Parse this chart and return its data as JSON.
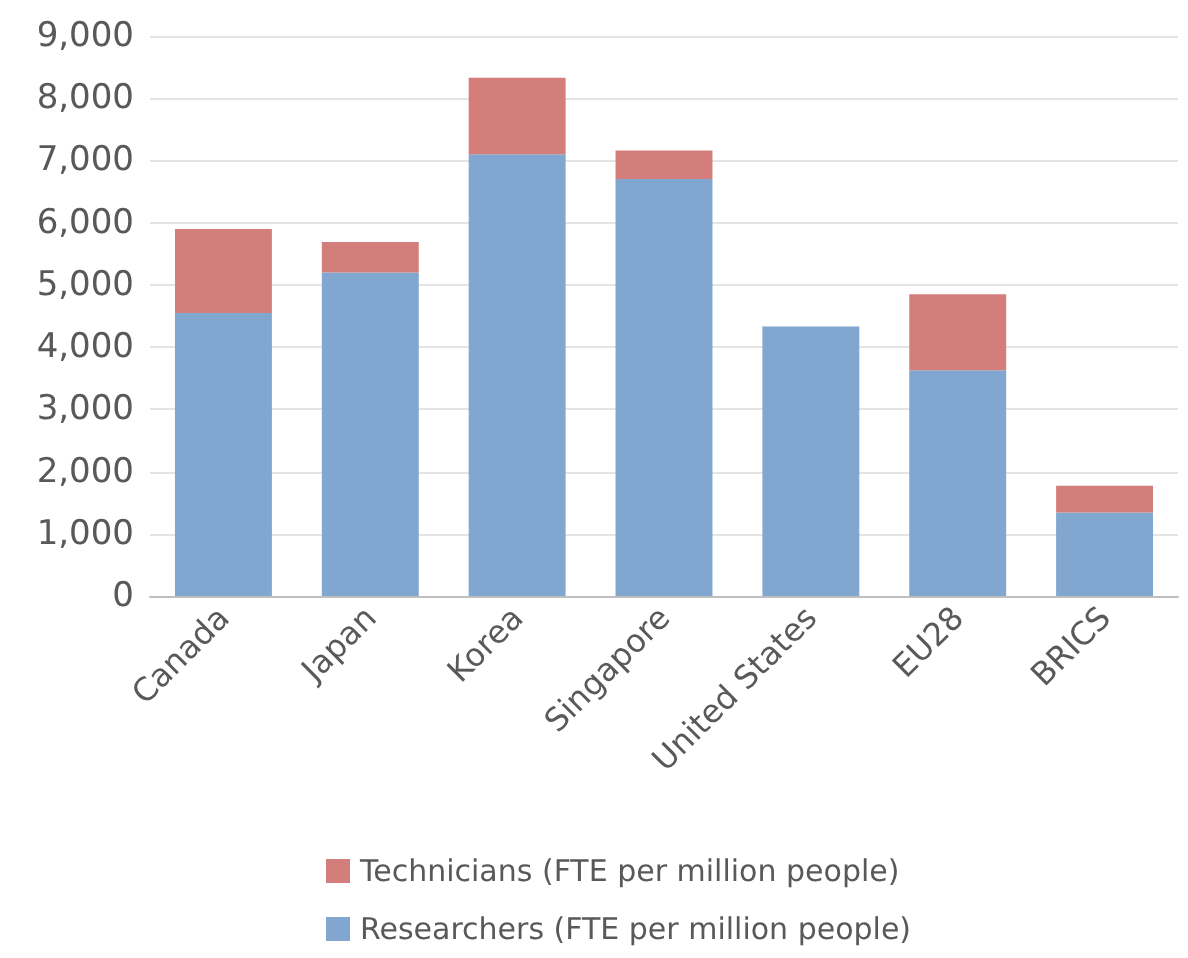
{
  "chart_data": {
    "type": "bar",
    "stacked": true,
    "categories": [
      "Canada",
      "Japan",
      "Korea",
      "Singapore",
      "United States",
      "EU28",
      "BRICS"
    ],
    "series": [
      {
        "name": "Researchers (FTE per million people)",
        "color": "#81a6cf",
        "values": [
          4550,
          5200,
          7100,
          6700,
          4330,
          3630,
          1340
        ]
      },
      {
        "name": "Technicians (FTE per million people)",
        "color": "#d47e7c",
        "values": [
          1350,
          490,
          1230,
          460,
          null,
          1220,
          430
        ]
      }
    ],
    "ylim": [
      0,
      9000
    ],
    "yticks": [
      0,
      {
        "value": 1000,
        "label": "1,000"
      },
      {
        "value": 2000,
        "label": "2,000"
      },
      {
        "value": 3000,
        "label": "3,000"
      },
      {
        "value": 4000,
        "label": "4,000"
      },
      {
        "value": 5000,
        "label": "5,000"
      },
      {
        "value": 6000,
        "label": "6,000"
      },
      {
        "value": 7000,
        "label": "7,000"
      },
      {
        "value": 8000,
        "label": "8,000"
      },
      {
        "value": 9000,
        "label": "9,000"
      }
    ],
    "grid": "y",
    "legend": "bottom"
  }
}
